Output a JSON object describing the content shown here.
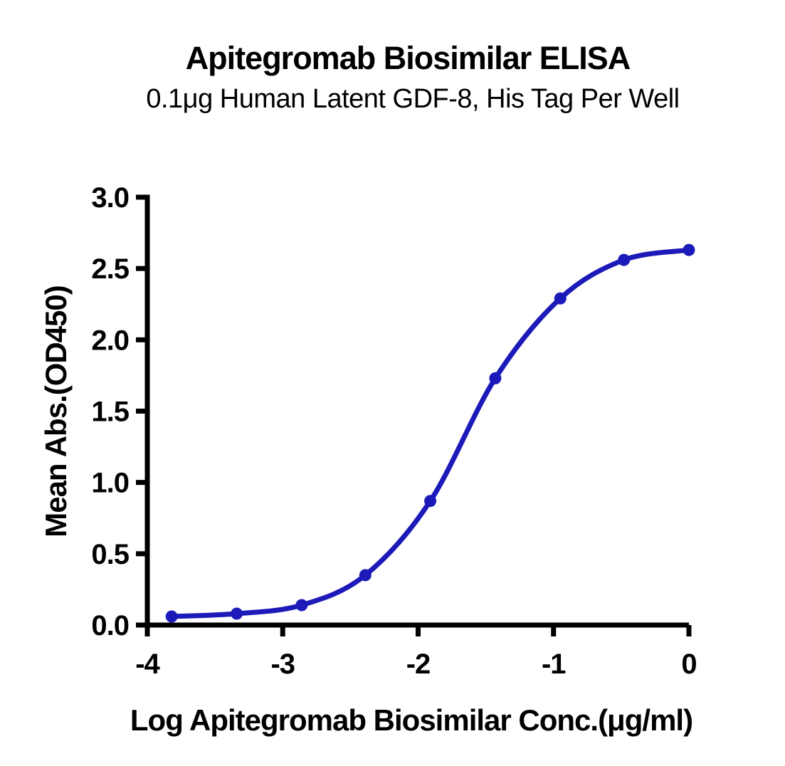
{
  "page": {
    "background_color": "#ffffff"
  },
  "chart_data": {
    "type": "line",
    "title": "Apitegromab Biosimilar ELISA",
    "subtitle": "0.1μg Human Latent GDF-8, His Tag Per Well",
    "xlabel": "Log Apitegromab Biosimilar Conc.(μg/ml)",
    "ylabel": "Mean Abs.(OD450)",
    "xlim": [
      -4,
      0
    ],
    "ylim": [
      0,
      3
    ],
    "x_ticks": [
      -4,
      -3,
      -2,
      -1,
      0
    ],
    "x_tick_labels": [
      "-4",
      "-3",
      "-2",
      "-1",
      "0"
    ],
    "y_ticks": [
      0,
      0.5,
      1,
      1.5,
      2,
      2.5,
      3
    ],
    "y_tick_labels": [
      "0.0",
      "0.5",
      "1.0",
      "1.5",
      "2.0",
      "2.5",
      "3.0"
    ],
    "grid": false,
    "legend": "none",
    "axis_color": "#000000",
    "series": [
      {
        "name": "Apitegromab Biosimilar",
        "color": "#1c1ab8",
        "marker": "circle",
        "x": [
          -3.82,
          -3.34,
          -2.86,
          -2.39,
          -1.91,
          -1.43,
          -0.95,
          -0.48,
          0.0
        ],
        "y": [
          0.06,
          0.08,
          0.14,
          0.35,
          0.87,
          1.73,
          2.29,
          2.56,
          2.63
        ]
      }
    ]
  }
}
